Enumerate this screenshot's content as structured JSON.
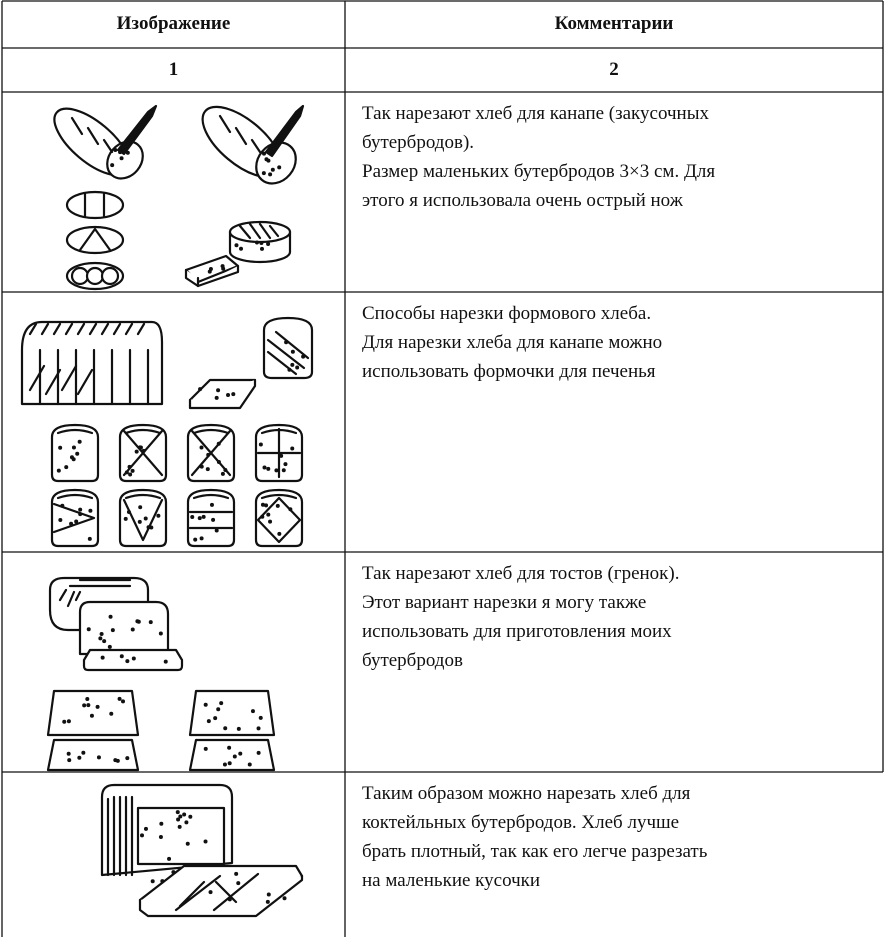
{
  "table": {
    "header": [
      "Изображение",
      "Комментарии"
    ],
    "numbers": [
      "1",
      "2"
    ],
    "rows": [
      {
        "comment": [
          "Так нарезают хлеб для канапе (закусочных",
          "бутербродов).",
          "Размер маленьких бутербродов 3×3 см. Для",
          "этого я использовала очень острый нож"
        ]
      },
      {
        "comment": [
          "Способы нарезки формового хлеба.",
          "Для нарезки хлеба для канапе можно",
          "использовать формочки для печенья"
        ]
      },
      {
        "comment": [
          "Так нарезают хлеб для тостов (гренок).",
          "Этот вариант нарезки я могу также",
          "использовать для приготовления моих",
          "бутербродов"
        ]
      },
      {
        "comment": [
          "Таким образом можно нарезать хлеб для",
          "коктейльных бутербродов. Хлеб лучше",
          "брать плотный, так как его легче разрезать",
          "на маленькие кусочки"
        ]
      }
    ]
  }
}
